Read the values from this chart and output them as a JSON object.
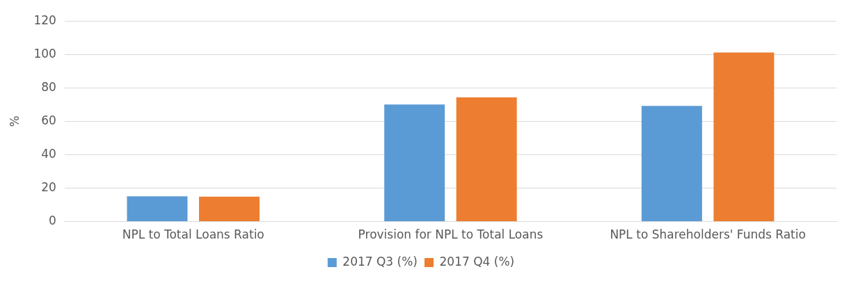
{
  "chart_data": {
    "type": "bar",
    "ylabel": "%",
    "categories": [
      "NPL to Total Loans Ratio",
      "Provision for NPL to Total Loans",
      "NPL to Shareholders' Funds Ratio"
    ],
    "series": [
      {
        "name": "2017 Q3 (%)",
        "color": "#5b9bd5",
        "values": [
          15.1,
          70.1,
          69.2
        ]
      },
      {
        "name": "2017 Q4 (%)",
        "color": "#ed7d31",
        "values": [
          14.9,
          74.3,
          101.1
        ]
      }
    ],
    "ylim": [
      0,
      120
    ],
    "yticks": [
      0,
      20,
      40,
      60,
      80,
      100,
      120
    ],
    "grid": "y",
    "legend": "bottom"
  }
}
